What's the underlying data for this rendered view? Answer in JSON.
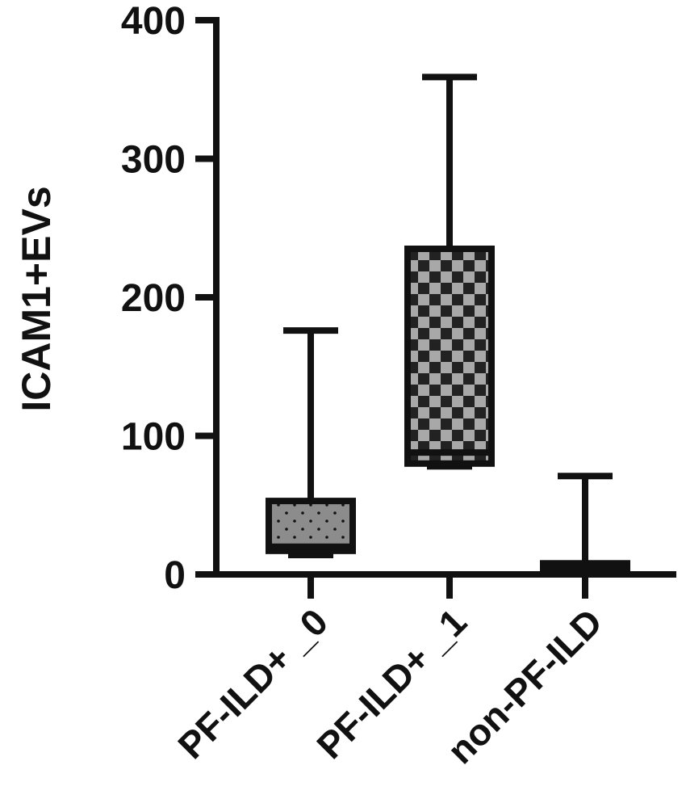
{
  "chart_data": {
    "type": "box",
    "y_label": "ICAM1+EVs",
    "categories": [
      "PF-ILD+ _0",
      "PF-ILD+ _1",
      "non-PF-ILD"
    ],
    "min": [
      14,
      78,
      0
    ],
    "q1": [
      17,
      80,
      0
    ],
    "median": [
      20,
      88,
      3
    ],
    "q3": [
      53,
      235,
      8
    ],
    "max": [
      176,
      359,
      71
    ],
    "colors": [
      "#8c8c8c",
      "#a8a8a8",
      "#111111"
    ],
    "ylim": [
      0,
      400
    ],
    "yticks": [
      0,
      100,
      200,
      300,
      400
    ]
  }
}
